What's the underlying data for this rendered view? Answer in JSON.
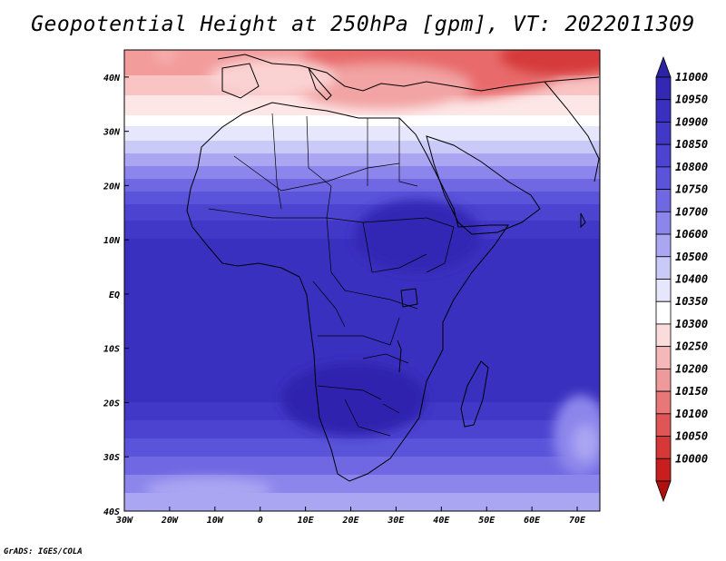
{
  "title": "Geopotential Height at 250hPa [gpm], VT: 2022011309",
  "credit": "GrADS: IGES/COLA",
  "map": {
    "lon_range": [
      -30,
      75
    ],
    "lat_range": [
      -40,
      45
    ],
    "x_ticks": [
      "30W",
      "20W",
      "10W",
      "0",
      "10E",
      "20E",
      "30E",
      "40E",
      "50E",
      "60E",
      "70E"
    ],
    "x_tick_values": [
      -30,
      -20,
      -10,
      0,
      10,
      20,
      30,
      40,
      50,
      60,
      70
    ],
    "y_ticks": [
      "40S",
      "30S",
      "20S",
      "10S",
      "EQ",
      "10N",
      "20N",
      "30N",
      "40N"
    ],
    "y_tick_values": [
      -40,
      -30,
      -20,
      -10,
      0,
      10,
      20,
      30,
      40
    ]
  },
  "colorbar": {
    "levels": [
      "11000",
      "10950",
      "10900",
      "10850",
      "10800",
      "10750",
      "10700",
      "10600",
      "10500",
      "10400",
      "10350",
      "10300",
      "10250",
      "10200",
      "10150",
      "10100",
      "10050",
      "10000"
    ],
    "colors": [
      "#2b22a6",
      "#3328b4",
      "#3a30c0",
      "#4238c8",
      "#4c44d0",
      "#5a54da",
      "#7068e2",
      "#8c86ec",
      "#aaa6f2",
      "#cacaf8",
      "#e6e6fc",
      "#ffffff",
      "#fbdcdc",
      "#f5b8b8",
      "#ee9a9a",
      "#e87777",
      "#e05555",
      "#d63737",
      "#c81e1e",
      "#b01010"
    ]
  },
  "colors": {
    "ocean_base": "#3e36c6",
    "coast": "#000000"
  }
}
